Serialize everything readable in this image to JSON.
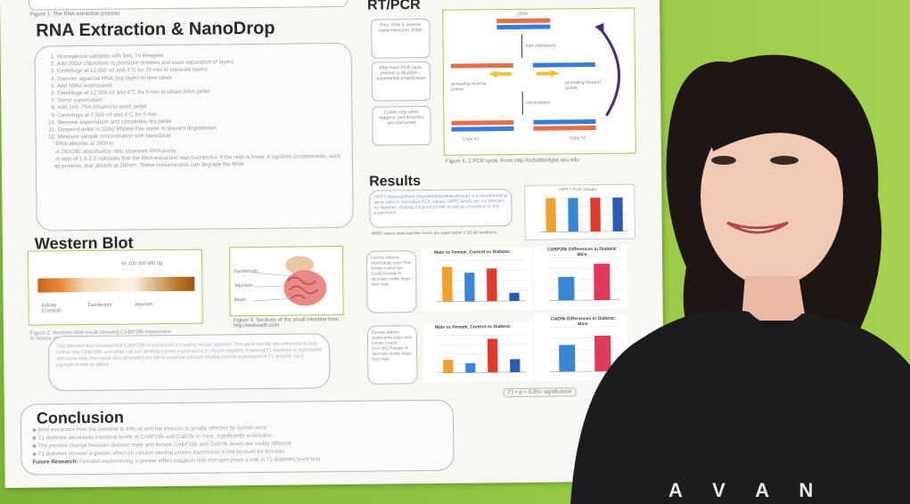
{
  "poster": {
    "top_caption": "Figure 1. The RNA extraction process",
    "top_pellet": "pellet",
    "rna_title": "RNA Extraction & NanoDrop",
    "rna_steps": [
      "Homogenize samples with 1mL Tri Reagent",
      "Add 200ul chloroform to denature proteins and ease separation of layers",
      "Centrifuge at 12,000 rcf and 4°C for 15 min to separate layers",
      "Transfer aqueous RNA (top layer) to new tubes",
      "Add 500ul isopropanol",
      "Centrifuge at 12,000 rcf and 4°C  for 5 min to obtain RNA pellet",
      "Dump supernatant",
      "Add 1mL 75% ethanol to wash pellet",
      "Centrifuge at 7,500 rcf and 4°C for 5 min",
      "Remove supernatant and completely dry pellet",
      "Suspend pellet in 100ul RNase-free water to prevent degradation",
      "Measure sample concentration with NanoDrop"
    ],
    "rna_sub": [
      "-RNA absorbs at 260nm",
      "-A 260/280 absorbance ratio assesses RNA purity",
      "-A ratio of 1.6-2.0 indicates that the RNA extraction was successful.  If the ratio is lower, it signifies contaminants, such as proteins, that absorb at 280nm.  These contaminants can degrade the RNA"
    ],
    "western_title": "Western Blot",
    "wb_labels": {
      "kidney": "Kidney (Control)",
      "duodenum": "Duodenum",
      "jejunum": "Jejunum",
      "sizes": "50   100   200   400   ng"
    },
    "fig2_caption": "Figure 2. Western Blot result showing CABP28k expression in mouse jejunum",
    "fig3_caption": "Figure 3. Sections of the small intestine from http://webvaith.com",
    "gut_labels": [
      "Duodenum",
      "Jejunum",
      "Ileum"
    ],
    "wb_text": "This Western Blot showed that CABP28k is expressed in healthy mouse jejunum. This gave our lab the reference to look further into CABP28k and other calcium binding protein expressions in mouse jejunum. Knowing T1 diabetes is associated with bone loss, this result also prompted our lab to examine calcium binding protein expression in T1 diabetic mice jejunum to test its effect.",
    "conclusion_title": "Conclusion",
    "conclusion": [
      "RNA extraction from the intestine is difficult and the process is greatly affected by human error",
      "T1 diabetes decreases intestinal levels of CABP28k and CalD9k in mice, significantly in females",
      "The percent change between diabetic male and female CABP28k and CalD9k levels are visibly different",
      "T1 diabetes showed a greater effect on calcium binding protein expression in the jejunum for females"
    ],
    "future_label": "Future Research:",
    "future_text": "Females experiencing a greater effect suggests that estrogen plays a role in T1-diabetes bone loss",
    "rt_title": "RT/PCR",
    "rt_side": [
      "First, RNA is reverse transcribed into cDNA",
      "After each PCR cycle, product is doubled→ exponential amplification",
      "Cycles stop when reagents and enzymes are consumed"
    ],
    "pcr_labels": {
      "cdna": "cDNA",
      "melt": "melt (denature)",
      "rev": "annealing reverse primer",
      "fwd": "annealing forward primer",
      "tx": "transcription",
      "copy1": "Copy #1",
      "copy2": "Copy #2"
    },
    "fig5_caption": "Figure 5. 1 PCR cycle. From http://scholtbiolgist.asu.edu",
    "results_title": "Results",
    "hprt_text": "HPRT (hypoxanthine phosphoribosyltransferase) is a housekeeping gene used to normalize PCR values. HPRT levels are not affected by diabetes, making it a good primer to use as a baseline in this experiment",
    "hprt_note": "HPRT values show baseline levels are equal within 1 SD all conditions",
    "hprt_chart_title": "HPRT PCR Values",
    "female_box_1": "Female diabetic significantly lower than female control (p< 0.038)  Female % decrease visibly larger than male",
    "female_box_2": "Female diabetic significantly lower than female control (p<0.001)  Female % decrease visibly larger than male",
    "chart2_title": "Male vs Female, Control vs Diabetic",
    "chart3_title": "CABP28k Differences in Diabetic Mice",
    "chart4_title": "Male vs Female, Control vs Diabetic",
    "chart5_title": "CalD9k Differences in Diabetic Mice",
    "chart3_labels": [
      "Male",
      "Female"
    ],
    "chart5_labels": [
      "Male",
      "Female"
    ],
    "significance": "(*) = p < 0.05= significance",
    "shirt_text": "A V A N"
  },
  "chart_data": [
    {
      "type": "bar",
      "title": "HPRT PCR Values",
      "categories": [
        "Male control",
        "Male diabetic",
        "Female control",
        "Female diabetic"
      ],
      "values": [
        1.0,
        1.0,
        1.0,
        1.0
      ],
      "colors": [
        "#f0a030",
        "#3a86d6",
        "#e03a2a",
        "#2a5bb0"
      ]
    },
    {
      "type": "bar",
      "title": "Male vs Female, Control vs Diabetic",
      "categories": [
        "Male control",
        "Male diabetic",
        "Female control",
        "Female diabetic"
      ],
      "values": [
        0.85,
        0.7,
        0.8,
        0.2
      ],
      "colors": [
        "#f0a030",
        "#3a86d6",
        "#e03a2a",
        "#2a5bb0"
      ]
    },
    {
      "type": "bar",
      "title": "CABP28k Differences in Diabetic Mice",
      "categories": [
        "Male",
        "Female"
      ],
      "values": [
        0.55,
        0.85
      ],
      "colors": [
        "#3a86d6",
        "#e03a5a"
      ]
    },
    {
      "type": "bar",
      "title": "Male vs Female, Control vs Diabetic",
      "categories": [
        "Male control",
        "Male diabetic",
        "Female control",
        "Female diabetic"
      ],
      "values": [
        0.35,
        0.25,
        0.9,
        0.35
      ],
      "colors": [
        "#f0a030",
        "#3a86d6",
        "#e03a2a",
        "#2a5bb0"
      ]
    },
    {
      "type": "bar",
      "title": "CalD9k Differences in Diabetic Mice",
      "categories": [
        "Male",
        "Female"
      ],
      "values": [
        0.6,
        0.8
      ],
      "colors": [
        "#3a86d6",
        "#e03a5a"
      ]
    }
  ]
}
